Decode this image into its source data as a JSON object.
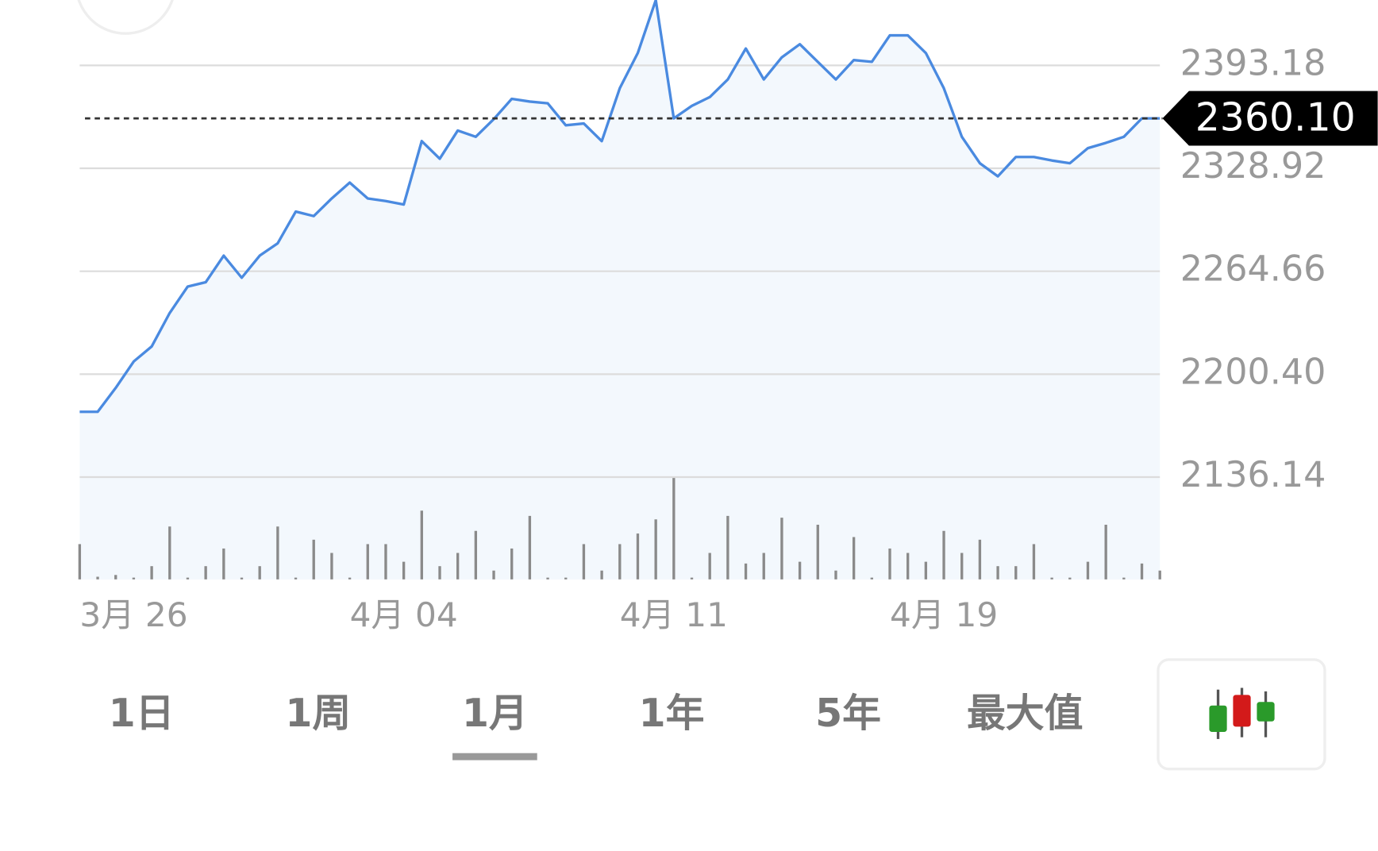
{
  "chart_data": {
    "type": "line",
    "categories": [
      "3月 26",
      null,
      null,
      null,
      null,
      null,
      null,
      null,
      null,
      null,
      null,
      null,
      null,
      null,
      null,
      "4月 04",
      null,
      null,
      null,
      null,
      null,
      null,
      null,
      null,
      null,
      null,
      null,
      null,
      null,
      null,
      "4月 11",
      null,
      null,
      null,
      null,
      null,
      null,
      null,
      null,
      null,
      null,
      null,
      null,
      null,
      null,
      "4月 19",
      null,
      null,
      null,
      null,
      null,
      null,
      null,
      null,
      null,
      null,
      null,
      null,
      null,
      null,
      null
    ],
    "values": [
      2176.9,
      2176.9,
      2191.8,
      2208.3,
      2217.7,
      2238.6,
      2255.1,
      2257.8,
      2274.4,
      2260.6,
      2274.4,
      2282.1,
      2301.9,
      2299.1,
      2310.1,
      2320.0,
      2310.1,
      2308.5,
      2306.3,
      2345.9,
      2334.9,
      2352.5,
      2348.6,
      2359.6,
      2372.3,
      2370.6,
      2369.5,
      2355.8,
      2356.9,
      2345.9,
      2378.9,
      2400.9,
      2433.9,
      2360.1,
      2367.9,
      2373.4,
      2384.4,
      2403.7,
      2384.4,
      2398.2,
      2406.4,
      2395.4,
      2384.4,
      2396.5,
      2395.4,
      2411.9,
      2411.9,
      2400.9,
      2378.9,
      2348.6,
      2332.1,
      2323.9,
      2336.0,
      2336.0,
      2333.8,
      2332.1,
      2341.5,
      2344.8,
      2348.6,
      2360.1,
      2360.1
    ],
    "color": "#4a8ae0",
    "volume": [
      40,
      3,
      5,
      2,
      15,
      60,
      2,
      15,
      35,
      2,
      15,
      60,
      2,
      45,
      30,
      2,
      40,
      40,
      20,
      78,
      15,
      30,
      55,
      10,
      35,
      72,
      2,
      2,
      40,
      10,
      40,
      52,
      68,
      115,
      2,
      30,
      72,
      18,
      30,
      70,
      20,
      62,
      10,
      48,
      2,
      35,
      30,
      20,
      55,
      30,
      45,
      15,
      15,
      40,
      2,
      2,
      20,
      62,
      2,
      18,
      10
    ],
    "volume_color": "#8a8a8a",
    "ylim": [
      2136.14,
      2434
    ],
    "yticks": [
      2136.14,
      {
        "value": 2200.4,
        "label": "2200.40"
      },
      2264.66,
      2328.92,
      2393.18
    ],
    "grid": true,
    "last_price": {
      "value": 2360.1,
      "label": "2360.10"
    },
    "ranges": [
      "1日",
      "1周",
      "1月",
      "1年",
      "5年",
      "最大值"
    ],
    "selected_range": 2
  }
}
